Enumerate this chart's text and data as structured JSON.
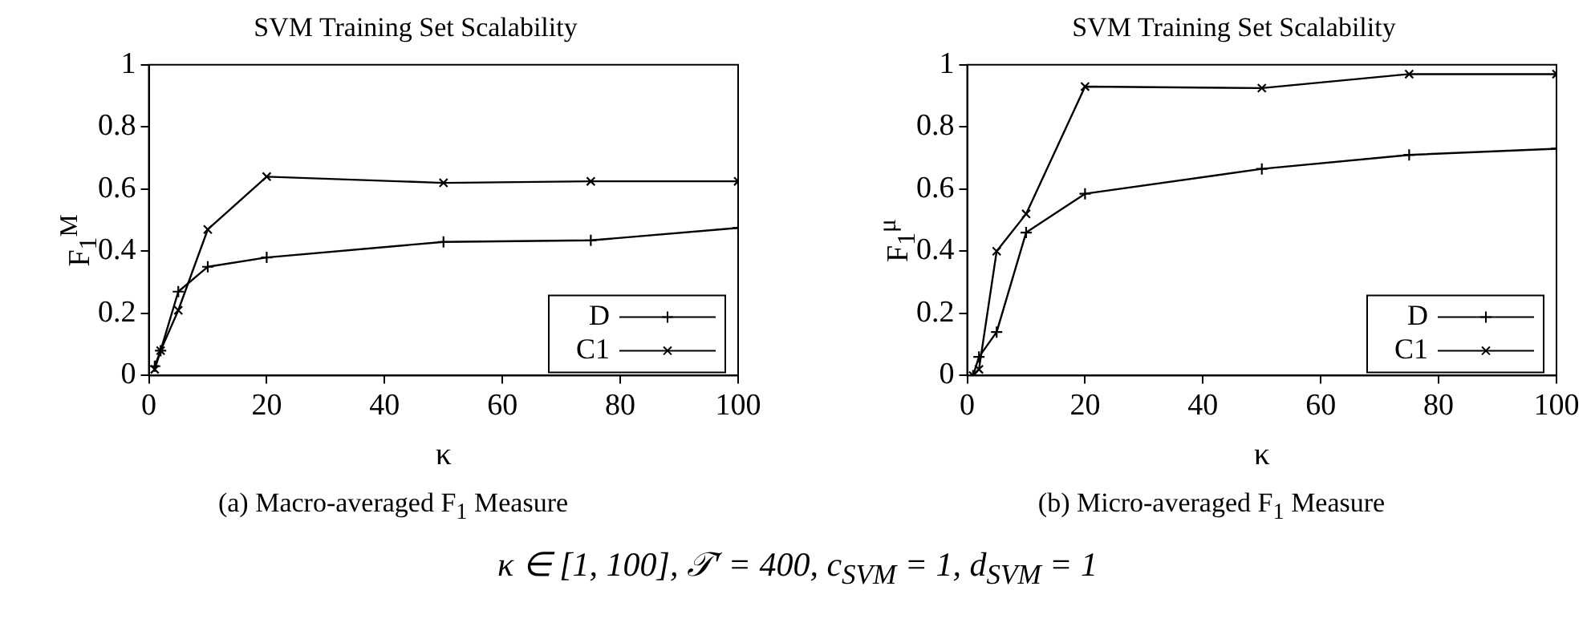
{
  "chart_data": [
    {
      "type": "line",
      "title": "SVM Training Set Scalability",
      "xlabel": "κ",
      "ylabel": "F$_{1}$$^{M}$",
      "x": [
        1,
        2,
        5,
        10,
        20,
        50,
        75,
        100
      ],
      "xlim": [
        0,
        100
      ],
      "xticks": [
        0,
        20,
        40,
        60,
        80,
        100
      ],
      "ylim": [
        0,
        1
      ],
      "yticks": [
        0,
        0.2,
        0.4,
        0.6,
        0.8,
        1
      ],
      "legend": "bottom right",
      "grid": false,
      "line_style": "solid",
      "series": [
        {
          "name": "D",
          "color": "#000000",
          "marker": "cross",
          "values": [
            0.03,
            0.08,
            0.27,
            0.35,
            0.38,
            0.43,
            0.435,
            0.475
          ]
        },
        {
          "name": "C1",
          "color": "#000000",
          "marker": "x",
          "values": [
            0.02,
            0.08,
            0.21,
            0.47,
            0.64,
            0.62,
            0.625,
            0.625
          ]
        }
      ],
      "annotations": [
        "(a) Macro-averaged F$_{1}$ Measure",
        "κ ∈ [1, 100], 𝒯′ = 400, c$_{SVM}$ = 1, d$_{SVM}$ = 1"
      ]
    },
    {
      "type": "line",
      "title": "SVM Training Set Scalability",
      "xlabel": "κ",
      "ylabel": "F$_{1}$$^{μ}$",
      "x": [
        1,
        2,
        5,
        10,
        20,
        50,
        75,
        100
      ],
      "xlim": [
        0,
        100
      ],
      "xticks": [
        0,
        20,
        40,
        60,
        80,
        100
      ],
      "ylim": [
        0,
        1
      ],
      "yticks": [
        0,
        0.2,
        0.4,
        0.6,
        0.8,
        1
      ],
      "legend": "bottom right",
      "grid": false,
      "line_style": "solid",
      "series": [
        {
          "name": "D",
          "color": "#000000",
          "marker": "cross",
          "values": [
            0.0,
            0.06,
            0.14,
            0.46,
            0.585,
            0.665,
            0.71,
            0.73
          ]
        },
        {
          "name": "C1",
          "color": "#000000",
          "marker": "x",
          "values": [
            0.0,
            0.02,
            0.4,
            0.52,
            0.93,
            0.925,
            0.97,
            0.97
          ]
        }
      ],
      "annotations": [
        "(b) Micro-averaged F$_{1}$ Measure"
      ]
    }
  ]
}
